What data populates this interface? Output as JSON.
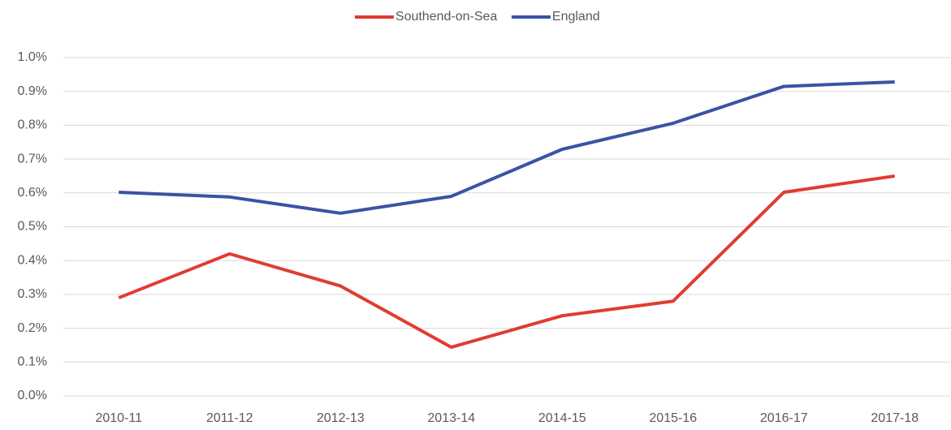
{
  "chart_data": {
    "type": "line",
    "categories": [
      "2010-11",
      "2011-12",
      "2012-13",
      "2013-14",
      "2014-15",
      "2015-16",
      "2016-17",
      "2017-18"
    ],
    "series": [
      {
        "name": "Southend-on-Sea",
        "color": "#e03c31",
        "values": [
          0.29,
          0.42,
          0.325,
          0.144,
          0.237,
          0.28,
          0.602,
          0.65
        ]
      },
      {
        "name": "England",
        "color": "#3a53a4",
        "values": [
          0.602,
          0.588,
          0.54,
          0.59,
          0.729,
          0.806,
          0.915,
          0.928
        ]
      }
    ],
    "ylim": [
      0,
      1.0
    ],
    "yticks": [
      {
        "value": 0,
        "label": "0.0%"
      },
      {
        "value": 0.1,
        "label": "0.1%"
      },
      {
        "value": 0.2,
        "label": "0.2%"
      },
      {
        "value": 0.3,
        "label": "0.3%"
      },
      {
        "value": 0.4,
        "label": "0.4%"
      },
      {
        "value": 0.5,
        "label": "0.5%"
      },
      {
        "value": 0.6,
        "label": "0.6%"
      },
      {
        "value": 0.7,
        "label": "0.7%"
      },
      {
        "value": 0.8,
        "label": "0.8%"
      },
      {
        "value": 0.9,
        "label": "0.9%"
      },
      {
        "value": 1.0,
        "label": "1.0%"
      }
    ],
    "grid": true,
    "legend": "top"
  }
}
